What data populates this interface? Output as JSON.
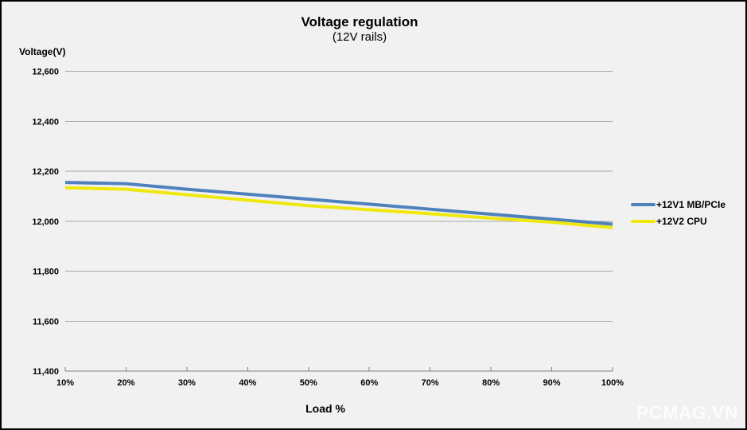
{
  "title": "Voltage regulation",
  "subtitle": "(12V rails)",
  "watermark": "PCMAG.VN",
  "colors": {
    "background": "#f1f1f1",
    "frame": "#000000",
    "gridline": "#a8a8a8",
    "axis": "#7f7f7f",
    "text": "#000000",
    "watermark_text": "#fcfcfc"
  },
  "chart_data": {
    "type": "line",
    "title": "Voltage regulation",
    "subtitle": "(12V rails)",
    "xlabel": "Load %",
    "ylabel": "Voltage(V)",
    "categories": [
      "10%",
      "20%",
      "30%",
      "40%",
      "50%",
      "60%",
      "70%",
      "80%",
      "90%",
      "100%"
    ],
    "series": [
      {
        "name": "+12V1 MB/PCIe",
        "color": "#4f81bd",
        "values": [
          12155,
          12150,
          12128,
          12108,
          12088,
          12068,
          12048,
          12028,
          12008,
          11988
        ]
      },
      {
        "name": "+12V2 CPU",
        "color": "#f0e80d",
        "values": [
          12134,
          12128,
          12106,
          12084,
          12062,
          12046,
          12030,
          12012,
          11996,
          11974
        ]
      }
    ],
    "ylim": [
      11400,
      12600
    ],
    "ytick_step": 200,
    "ytick_labels": [
      "12,600",
      "12,400",
      "12,200",
      "12,000",
      "11,800",
      "11,600",
      "11,400"
    ],
    "grid": "horizontal",
    "legend_position": "right",
    "line_width": 4
  }
}
